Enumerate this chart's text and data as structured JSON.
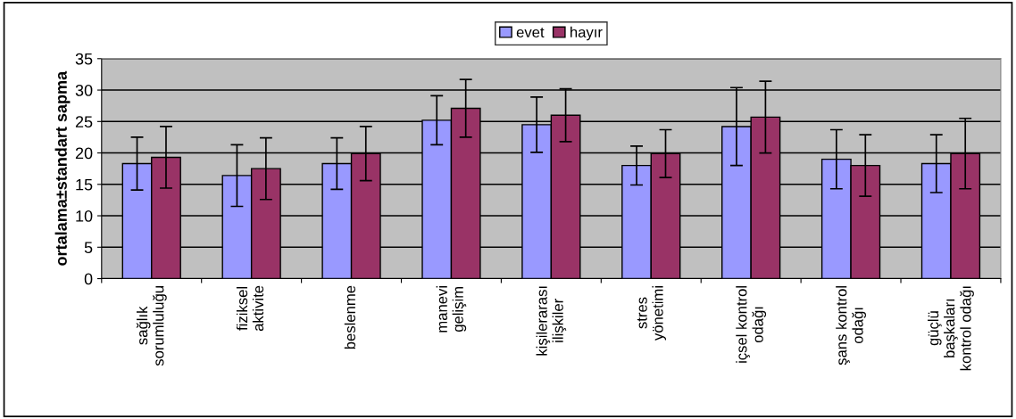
{
  "chart_data": {
    "type": "bar",
    "ylabel": "ortalama±standart sapma",
    "categories": [
      "sağlık\nsorumluluğu",
      "fiziksel\naktivite",
      "beslenme",
      "manevi\ngelişim",
      "kişilerarası\nilişkiler",
      "stres\nyönetimi",
      "içsel kontrol\nodağı",
      "şans kontrol\nodağı",
      "güçlü\nbaşkaları\nkontrol odağı"
    ],
    "series": [
      {
        "name": "evet",
        "color": "#9999ff",
        "values": [
          18.3,
          16.4,
          18.3,
          25.2,
          24.5,
          18.0,
          24.2,
          19.0,
          18.3
        ],
        "errors": [
          4.2,
          4.9,
          4.1,
          3.9,
          4.4,
          3.1,
          6.2,
          4.7,
          4.6
        ]
      },
      {
        "name": "hayır",
        "color": "#993366",
        "values": [
          19.3,
          17.5,
          19.9,
          27.1,
          26.0,
          19.9,
          25.7,
          18.0,
          19.9
        ],
        "errors": [
          4.9,
          4.9,
          4.3,
          4.6,
          4.2,
          3.8,
          5.7,
          4.9,
          5.6
        ]
      }
    ],
    "ylim": [
      0,
      35
    ],
    "yticks": [
      0,
      5,
      10,
      15,
      20,
      25,
      30,
      35
    ],
    "grid": "y",
    "legend": "top"
  }
}
